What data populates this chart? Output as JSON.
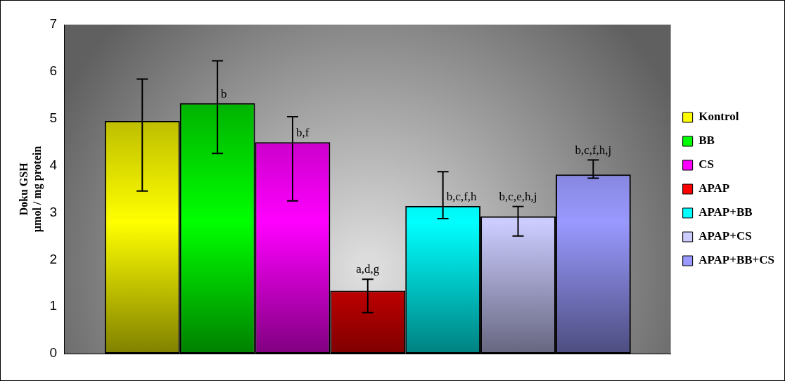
{
  "chart_data": {
    "type": "bar",
    "ylabel": "Doku GSH\nµmol / mg protein",
    "categories": [
      null
    ],
    "ylim": [
      0,
      7
    ],
    "yticks": [
      0,
      1,
      2,
      3,
      4,
      5,
      6,
      7
    ],
    "grid": false,
    "legend": "right",
    "series": [
      {
        "name": "Kontrol",
        "color": "#ffff00",
        "values": [
          4.95
        ],
        "errors": [
          [
            3.46,
            5.84
          ]
        ]
      },
      {
        "name": "BB",
        "color": "#00ff00",
        "values": [
          5.33
        ],
        "errors": [
          [
            4.26,
            6.23
          ]
        ],
        "value_labels": [
          "b"
        ]
      },
      {
        "name": "CS",
        "color": "#ff00ff",
        "values": [
          4.5
        ],
        "errors": [
          [
            3.25,
            5.04
          ]
        ],
        "value_labels": [
          "b,f"
        ]
      },
      {
        "name": "APAP",
        "color": "#ff0000",
        "values": [
          1.34
        ],
        "errors": [
          [
            0.87,
            1.58
          ]
        ],
        "value_labels": [
          "a,d,g"
        ]
      },
      {
        "name": "APAP+BB",
        "color": "#00ffff",
        "values": [
          3.14
        ],
        "errors": [
          [
            2.87,
            3.87
          ]
        ],
        "value_labels": [
          "b,c,f,h"
        ]
      },
      {
        "name": "APAP+CS",
        "color": "#ccccff",
        "values": [
          2.92
        ],
        "errors": [
          [
            2.5,
            3.13
          ]
        ],
        "value_labels": [
          "b,c,e,h,j"
        ]
      },
      {
        "name": "APAP+BB+CS",
        "color": "#9999ff",
        "values": [
          3.81
        ],
        "errors": [
          [
            3.73,
            4.12
          ]
        ],
        "value_labels": [
          "b,c,f,h,j"
        ]
      }
    ]
  }
}
